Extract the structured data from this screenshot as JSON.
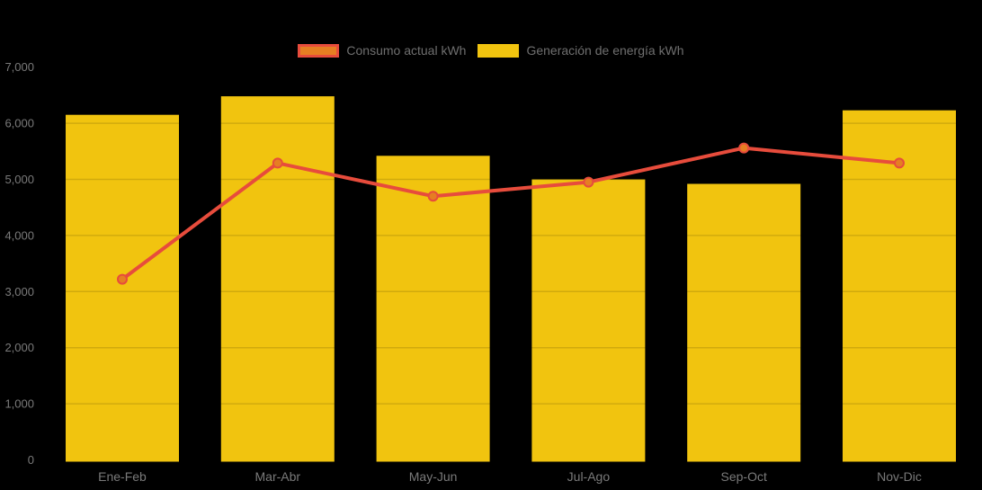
{
  "background_color": "#000000",
  "legend": {
    "position": "top-center",
    "items": [
      {
        "label": "Consumo actual kWh",
        "swatch_fill": "#e67e22",
        "swatch_border": "#e74c3c",
        "series_type": "line"
      },
      {
        "label": "Generación de energía kWh",
        "swatch_fill": "#f1c40f",
        "swatch_border": "#f1c40f",
        "series_type": "bar"
      }
    ]
  },
  "chart_data": {
    "type": "bar",
    "subtype": "bar-line combo",
    "title": "",
    "xlabel": "",
    "ylabel": "",
    "categories": [
      "Ene-Feb",
      "Mar-Abr",
      "May-Jun",
      "Jul-Ago",
      "Sep-Oct",
      "Nov-Dic"
    ],
    "series": [
      {
        "name": "Generación de energía kWh",
        "type": "bar",
        "color": "#f1c40f",
        "values": [
          6150,
          6480,
          5420,
          5000,
          4920,
          6230
        ]
      },
      {
        "name": "Consumo actual kWh",
        "type": "line",
        "color": "#e74c3c",
        "marker_fill": "#e67e22",
        "marker_stroke": "#e74c3c",
        "values": [
          3220,
          5290,
          4700,
          4950,
          5560,
          5290
        ]
      }
    ],
    "ylim": [
      0,
      7000
    ],
    "yticks": [
      0,
      1000,
      2000,
      3000,
      4000,
      5000,
      6000,
      7000
    ],
    "ytick_labels": [
      "0",
      "1,000",
      "2,000",
      "3,000",
      "4,000",
      "5,000",
      "6,000",
      "7,000"
    ],
    "grid": "horizontal, very faint (visible only over bars)",
    "legend_position": "top-center",
    "axis_text_color": "#7a7a7a"
  }
}
